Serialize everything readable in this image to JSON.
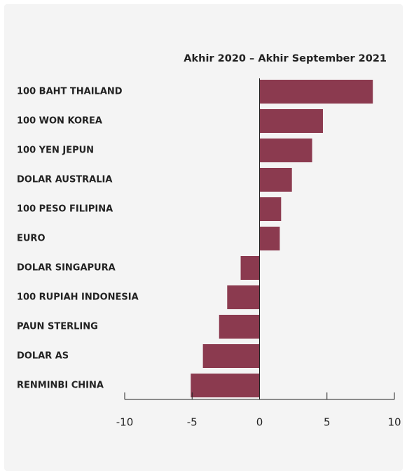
{
  "chart_data": {
    "type": "barh",
    "title": "Akhir 2020 – Akhir September 2021",
    "categories": [
      "100 BAHT THAILAND",
      "100 WON KOREA",
      "100 YEN JEPUN",
      "DOLAR AUSTRALIA",
      "100 PESO FILIPINA",
      "EURO",
      "DOLAR SINGAPURA",
      "100 RUPIAH INDONESIA",
      "PAUN STERLING",
      "DOLAR AS",
      "RENMINBI CHINA"
    ],
    "values": [
      8.4,
      4.7,
      3.9,
      2.4,
      1.6,
      1.5,
      -1.4,
      -2.4,
      -3.0,
      -4.2,
      -5.1
    ],
    "color": "#8b3a4f",
    "xlim": [
      -10,
      10
    ],
    "xticks": [
      -10,
      -5,
      0,
      5,
      10
    ]
  }
}
